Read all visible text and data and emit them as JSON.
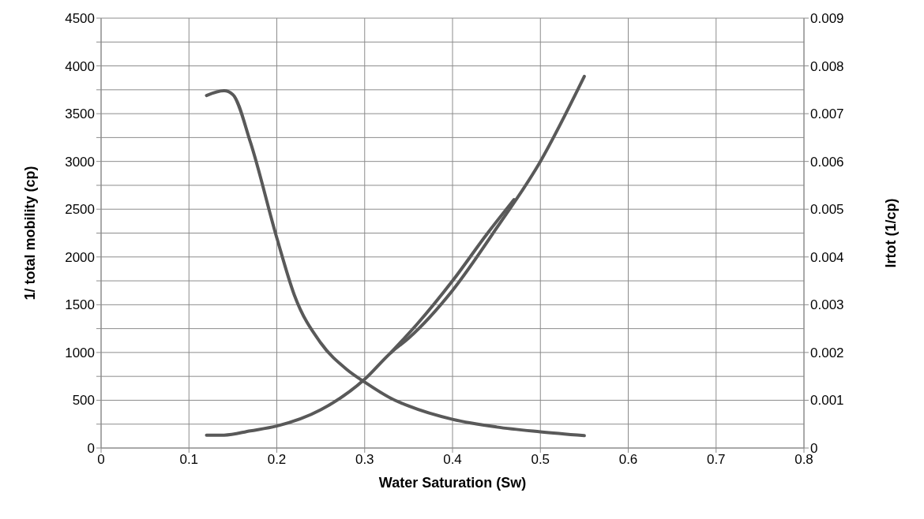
{
  "chart_data": {
    "type": "line",
    "xlabel": "Water Saturation (Sw)",
    "ylabel": "1/ total mobility (cp)",
    "y2label": "lrtot (1/cp)",
    "xlim": [
      0,
      0.8
    ],
    "xticks": [
      0,
      0.1,
      0.2,
      0.3,
      0.4,
      0.5,
      0.6,
      0.7,
      0.8
    ],
    "ylim": [
      0,
      4500
    ],
    "yticks": [
      0,
      {
        "value": 250,
        "label": null
      },
      500,
      {
        "value": 750,
        "label": null
      },
      1000,
      {
        "value": 1250,
        "label": null
      },
      1500,
      {
        "value": 1750,
        "label": null
      },
      2000,
      {
        "value": 2250,
        "label": null
      },
      2500,
      {
        "value": 2750,
        "label": null
      },
      3000,
      {
        "value": 3250,
        "label": null
      },
      3500,
      {
        "value": 3750,
        "label": null
      },
      4000,
      {
        "value": 4250,
        "label": null
      },
      4500
    ],
    "y2lim": [
      0,
      0.009
    ],
    "y2ticks": [
      0,
      0.001,
      0.002,
      0.003,
      0.004,
      0.005,
      0.006,
      0.007,
      0.008,
      0.009
    ],
    "grid": true,
    "marker": "none",
    "line_style": "solid",
    "series": [
      {
        "color": "#595959",
        "x": [
          0.12,
          0.14,
          0.15,
          0.17,
          0.2,
          0.22,
          0.25,
          0.28,
          0.3,
          0.33,
          0.35,
          0.4,
          0.45,
          0.5,
          0.55
        ],
        "values": [
          3690,
          3740,
          3700,
          3200,
          2200,
          1600,
          1100,
          820,
          690,
          520,
          440,
          300,
          220,
          170,
          130
        ]
      },
      {
        "color": "#595959",
        "axis": "y2",
        "x": [
          0.12,
          0.14,
          0.17,
          0.2,
          0.25,
          0.3,
          0.33,
          0.35,
          0.4,
          0.45,
          0.5,
          0.55
        ],
        "values": [
          0.00027,
          0.00027,
          0.00036,
          0.00046,
          0.0008,
          0.00144,
          0.002,
          0.0023,
          0.0033,
          0.0046,
          0.006,
          0.00778
        ]
      },
      {
        "color": "#595959",
        "axis": "y2",
        "x": [
          0.33,
          0.36,
          0.4,
          0.44,
          0.47
        ],
        "values": [
          0.002,
          0.0026,
          0.0035,
          0.0045,
          0.0052
        ]
      }
    ]
  }
}
